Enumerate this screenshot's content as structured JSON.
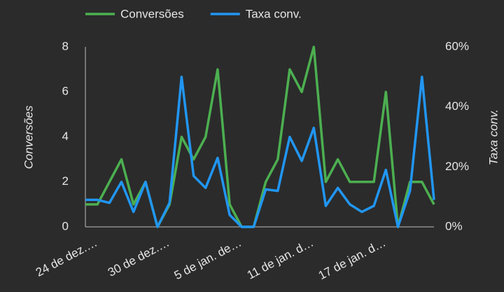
{
  "chart_data": {
    "type": "line",
    "categories": [
      "24 de dez.…",
      null,
      null,
      null,
      null,
      null,
      "30 de dez.…",
      null,
      null,
      null,
      null,
      null,
      "5 de jan. de…",
      null,
      null,
      null,
      null,
      null,
      "11 de jan. d…",
      null,
      null,
      null,
      null,
      null,
      "17 de jan. d…",
      null,
      null,
      null,
      null,
      null
    ],
    "series": [
      {
        "name": "Conversões",
        "color": "#4caf50",
        "axis": "y",
        "values": [
          1,
          1,
          2,
          3,
          1,
          2,
          0,
          1,
          4,
          3,
          4,
          7,
          1,
          0,
          0,
          2,
          3,
          7,
          6,
          8,
          2,
          3,
          2,
          2,
          2,
          6,
          0,
          2,
          2,
          1
        ]
      },
      {
        "name": "Taxa conv.",
        "color": "#2196f3",
        "axis": "y2",
        "values": [
          9,
          9,
          8,
          15,
          5,
          15,
          0,
          8,
          50,
          17,
          13,
          23,
          4,
          0,
          0,
          12.5,
          12,
          30,
          22,
          33,
          7,
          13,
          7.5,
          5,
          7,
          19,
          0,
          12,
          50,
          9
        ]
      }
    ],
    "ylabel": "Conversões",
    "y2label": "Taxa conv.",
    "ylim": [
      0,
      8
    ],
    "yticks": [
      0,
      2,
      4,
      6,
      8
    ],
    "y2lim": [
      0,
      60
    ],
    "y2ticks": [
      {
        "value": 0,
        "label": "0%"
      },
      {
        "value": 20,
        "label": "20%"
      },
      {
        "value": 40,
        "label": "40%"
      },
      {
        "value": 60,
        "label": "60%"
      }
    ],
    "grid": false,
    "legend": "top"
  }
}
